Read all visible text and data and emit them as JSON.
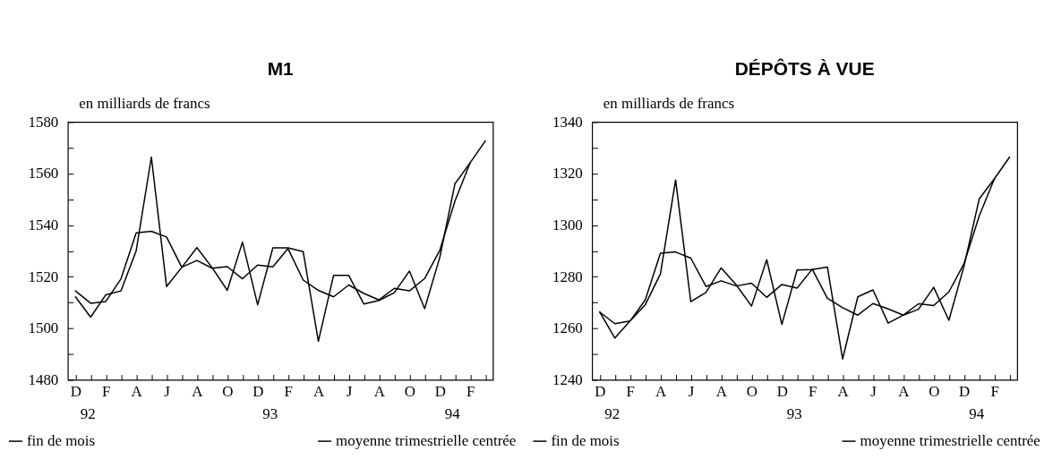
{
  "chart_data": [
    {
      "type": "line",
      "title": "M1",
      "ylabel": "en milliards de francs",
      "categories": [
        "D\n92",
        null,
        "F",
        null,
        "A",
        null,
        "J",
        null,
        "A",
        null,
        "O",
        null,
        "D\n93",
        null,
        "F",
        null,
        "A",
        null,
        "J",
        null,
        "A",
        null,
        "O",
        null,
        "D\n94",
        null,
        "F",
        null
      ],
      "series": [
        {
          "name": "fin de mois",
          "color": "#000000",
          "values": [
            1512.2,
            1504.3,
            1513.0,
            1514.5,
            1530.1,
            1566.4,
            1516.2,
            1523.6,
            1531.3,
            1523.5,
            1514.7,
            1533.4,
            1509.1,
            1531.2,
            1531.2,
            1529.7,
            1495.0,
            1520.5,
            1520.5,
            1509.4,
            1510.8,
            1513.8,
            1522.2,
            1507.6,
            1527.6,
            1556.1,
            1564.2,
            1572.7
          ]
        },
        {
          "name": "moyenne trimestrielle centrée",
          "color": "#000000",
          "values": [
            1514.5,
            1509.7,
            1510.4,
            1519.2,
            1537.0,
            1537.6,
            1535.4,
            1523.7,
            1526.3,
            1523.3,
            1523.9,
            1519.2,
            1524.5,
            1523.8,
            1530.9,
            1518.7,
            1514.7,
            1512.2,
            1516.8,
            1513.5,
            1511.0,
            1515.5,
            1514.5,
            1519.3,
            1530.3,
            1549.4,
            1564.2,
            null
          ]
        }
      ],
      "ylim": [
        1480,
        1580
      ],
      "yticks": [
        1480,
        {
          "value": 1490,
          "label": null
        },
        1500,
        {
          "value": 1510,
          "label": null
        },
        1520,
        {
          "value": 1530,
          "label": null
        },
        1540,
        {
          "value": 1550,
          "label": null
        },
        1560,
        {
          "value": 1570,
          "label": null
        },
        1580
      ],
      "grid": false,
      "legend": "bottom"
    },
    {
      "type": "line",
      "title": "DÉPÔTS À VUE",
      "ylabel": "en milliards de francs",
      "categories": [
        "D\n92",
        null,
        "F",
        null,
        "A",
        null,
        "J",
        null,
        "A",
        null,
        "O",
        null,
        "D\n93",
        null,
        "F",
        null,
        "A",
        null,
        "J",
        null,
        "A",
        null,
        "O",
        null,
        "D\n94",
        null,
        "F",
        null
      ],
      "series": [
        {
          "name": "fin de mois",
          "color": "#000000",
          "values": [
            1266.3,
            1256.2,
            1262.8,
            1269.1,
            1281.1,
            1317.5,
            1270.3,
            1273.9,
            1283.4,
            1276.8,
            1268.6,
            1286.6,
            1261.5,
            1282.6,
            1282.8,
            1283.7,
            1248.1,
            1272.2,
            1274.9,
            1262.0,
            1265.1,
            1267.4,
            1275.9,
            1263.1,
            1284.2,
            1310.2,
            1318.0,
            1326.4
          ]
        },
        {
          "name": "moyenne trimestrielle centrée",
          "color": "#000000",
          "values": [
            1266.3,
            1261.8,
            1262.8,
            1271.0,
            1289.1,
            1289.6,
            1287.2,
            1276.2,
            1278.4,
            1276.4,
            1277.5,
            1272.0,
            1277.0,
            1275.6,
            1282.9,
            1271.6,
            1268.0,
            1265.1,
            1269.6,
            1267.5,
            1265.1,
            1269.5,
            1268.8,
            1274.1,
            1285.1,
            1303.6,
            1318.0,
            null
          ]
        }
      ],
      "ylim": [
        1240,
        1340
      ],
      "yticks": [
        1240,
        {
          "value": 1250,
          "label": null
        },
        1260,
        {
          "value": 1270,
          "label": null
        },
        1280,
        {
          "value": 1290,
          "label": null
        },
        1300,
        {
          "value": 1310,
          "label": null
        },
        1320,
        {
          "value": 1330,
          "label": null
        },
        1340
      ],
      "grid": false,
      "legend": "bottom"
    }
  ]
}
